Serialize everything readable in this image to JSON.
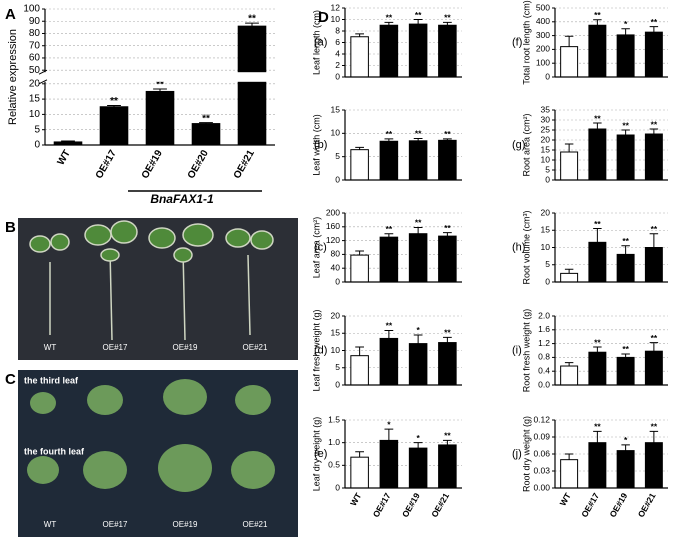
{
  "chart_data": [
    {
      "type": "bar",
      "panel": "A",
      "categories": [
        "WT",
        "OE#17",
        "OE#19",
        "OE#20",
        "OE#21"
      ],
      "values": [
        1,
        12.5,
        17.5,
        7,
        86
      ],
      "errors": [
        0.3,
        0.4,
        0.8,
        0.3,
        2.5
      ],
      "annotations": [
        null,
        "**",
        "**",
        "**",
        "**"
      ],
      "colors": [
        "#000000",
        "#000000",
        "#000000",
        "#000000",
        "#000000"
      ],
      "ylim": [
        0,
        100
      ],
      "ybreak": [
        20,
        50
      ],
      "yticks": [
        0,
        5,
        10,
        15,
        20,
        50,
        60,
        70,
        80,
        90,
        100
      ],
      "ylabel": "Relative expression",
      "xlabel": "BnaFAX1-1",
      "grid": true
    },
    {
      "type": "bar",
      "panel": "(a)",
      "values": [
        7,
        9,
        9.2,
        9
      ],
      "errors": [
        0.5,
        0.5,
        0.8,
        0.5
      ],
      "annotations": [
        null,
        "**",
        "**",
        "**"
      ],
      "colors": [
        "#ffffff",
        "#000000",
        "#000000",
        "#000000"
      ],
      "ylim": [
        0,
        12
      ],
      "yticks": [
        0,
        2,
        4,
        6,
        8,
        10,
        12
      ],
      "ylabel": "Leaf length (cm)",
      "grid": true
    },
    {
      "type": "bar",
      "panel": "(b)",
      "values": [
        6.5,
        8.3,
        8.4,
        8.5
      ],
      "errors": [
        0.5,
        0.5,
        0.5,
        0.3
      ],
      "annotations": [
        null,
        "**",
        "**",
        "**"
      ],
      "colors": [
        "#ffffff",
        "#000000",
        "#000000",
        "#000000"
      ],
      "ylim": [
        0,
        15
      ],
      "yticks": [
        0,
        5,
        10,
        15
      ],
      "ylabel": "Leaf width (cm)",
      "grid": true
    },
    {
      "type": "bar",
      "panel": "(c)",
      "values": [
        78,
        130,
        140,
        133
      ],
      "errors": [
        12,
        10,
        18,
        10
      ],
      "annotations": [
        null,
        "**",
        "**",
        "**"
      ],
      "colors": [
        "#ffffff",
        "#000000",
        "#000000",
        "#000000"
      ],
      "ylim": [
        0,
        200
      ],
      "yticks": [
        0,
        40,
        80,
        120,
        160,
        200
      ],
      "ylabel": "Leaf area (cm²)",
      "grid": true
    },
    {
      "type": "bar",
      "panel": "(d)",
      "values": [
        8.5,
        13.5,
        12,
        12.3
      ],
      "errors": [
        2.5,
        2.3,
        2.5,
        1.5
      ],
      "annotations": [
        null,
        "**",
        "*",
        "**"
      ],
      "colors": [
        "#ffffff",
        "#000000",
        "#000000",
        "#000000"
      ],
      "ylim": [
        0,
        20
      ],
      "yticks": [
        0,
        5,
        10,
        15,
        20
      ],
      "ylabel": "Leaf fresh weight (g)",
      "grid": true
    },
    {
      "type": "bar",
      "panel": "(e)",
      "categories": [
        "WT",
        "OE#17",
        "OE#19",
        "OE#21"
      ],
      "values": [
        0.68,
        1.05,
        0.88,
        0.95
      ],
      "errors": [
        0.12,
        0.25,
        0.12,
        0.1
      ],
      "annotations": [
        null,
        "*",
        "*",
        "**"
      ],
      "colors": [
        "#ffffff",
        "#000000",
        "#000000",
        "#000000"
      ],
      "ylim": [
        0,
        1.5
      ],
      "yticks": [
        0,
        0.5,
        {
          "value": 1,
          "label": "1.0"
        },
        1.5
      ],
      "ylabel": "Leaf dry weight (g)",
      "grid": true
    },
    {
      "type": "bar",
      "panel": "(f)",
      "values": [
        220,
        375,
        305,
        325
      ],
      "errors": [
        75,
        40,
        45,
        40
      ],
      "annotations": [
        null,
        "**",
        "*",
        "**"
      ],
      "colors": [
        "#ffffff",
        "#000000",
        "#000000",
        "#000000"
      ],
      "ylim": [
        0,
        500
      ],
      "yticks": [
        0,
        100,
        200,
        300,
        400,
        500
      ],
      "ylabel": "Total root length (cm)",
      "grid": true
    },
    {
      "type": "bar",
      "panel": "(g)",
      "values": [
        14,
        25.5,
        22.5,
        23
      ],
      "errors": [
        4,
        3,
        2.5,
        2.5
      ],
      "annotations": [
        null,
        "**",
        "**",
        "**"
      ],
      "colors": [
        "#ffffff",
        "#000000",
        "#000000",
        "#000000"
      ],
      "ylim": [
        0,
        35
      ],
      "yticks": [
        0,
        5,
        10,
        15,
        20,
        25,
        30,
        35
      ],
      "ylabel": "Root area (cm²)",
      "grid": true
    },
    {
      "type": "bar",
      "panel": "(h)",
      "values": [
        2.5,
        11.5,
        8,
        10
      ],
      "errors": [
        1.2,
        4,
        2.5,
        4
      ],
      "annotations": [
        null,
        "**",
        "**",
        "**"
      ],
      "colors": [
        "#ffffff",
        "#000000",
        "#000000",
        "#000000"
      ],
      "ylim": [
        0,
        20
      ],
      "yticks": [
        0,
        5,
        10,
        15,
        20
      ],
      "ylabel": "Root volume (cm³)",
      "grid": true
    },
    {
      "type": "bar",
      "panel": "(i)",
      "values": [
        0.55,
        0.95,
        0.8,
        0.98
      ],
      "errors": [
        0.1,
        0.15,
        0.1,
        0.25
      ],
      "annotations": [
        null,
        "**",
        "**",
        "**"
      ],
      "colors": [
        "#ffffff",
        "#000000",
        "#000000",
        "#000000"
      ],
      "ylim": [
        0,
        2
      ],
      "yticks": [
        {
          "value": 0,
          "label": "0.0"
        },
        0.4,
        0.8,
        1.2,
        1.6,
        {
          "value": 2,
          "label": "2.0"
        }
      ],
      "ylabel": "Root fresh weight (g)",
      "grid": true
    },
    {
      "type": "bar",
      "panel": "(j)",
      "categories": [
        "WT",
        "OE#17",
        "OE#19",
        "OE#21"
      ],
      "values": [
        0.05,
        0.08,
        0.066,
        0.08
      ],
      "errors": [
        0.01,
        0.02,
        0.01,
        0.02
      ],
      "annotations": [
        null,
        "**",
        "*",
        "**"
      ],
      "colors": [
        "#ffffff",
        "#000000",
        "#000000",
        "#000000"
      ],
      "ylim": [
        0,
        0.12
      ],
      "yticks": [
        {
          "value": 0,
          "label": "0.00"
        },
        0.03,
        0.06,
        0.09,
        0.12
      ],
      "ylabel": "Root dry weight (g)",
      "grid": true
    }
  ],
  "figure_label": "D",
  "photos": [
    {
      "panel": "B",
      "labels": [
        "WT",
        "OE#17",
        "OE#19",
        "OE#21"
      ]
    },
    {
      "panel": "C",
      "row_labels": [
        "the third leaf",
        "the fourth leaf"
      ],
      "labels": [
        "WT",
        "OE#17",
        "OE#19",
        "OE#21"
      ]
    }
  ]
}
